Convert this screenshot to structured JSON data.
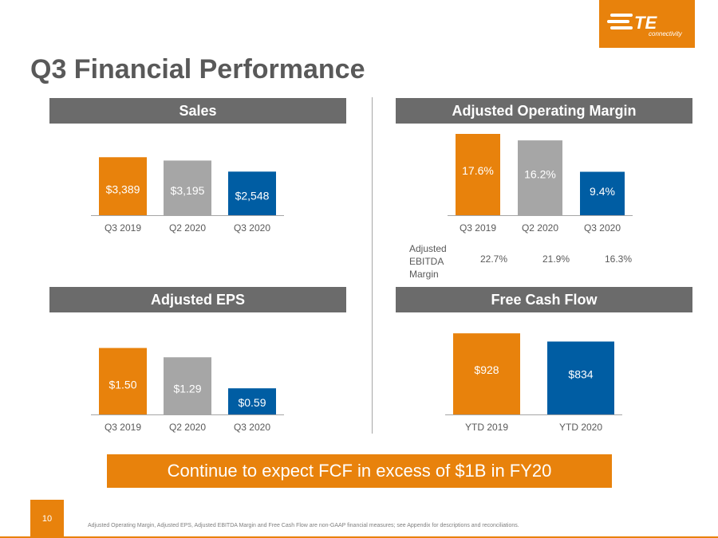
{
  "logo": {
    "brand": "TE",
    "tagline": "connectivity"
  },
  "title": "Q3 Financial Performance",
  "colors": {
    "orange": "#e8820c",
    "gray": "#a6a6a6",
    "blue": "#005da3",
    "header": "#6b6b6b"
  },
  "panels": {
    "sales": {
      "header": "Sales"
    },
    "opmargin": {
      "header": "Adjusted Operating Margin",
      "ebitda": {
        "label": "Adjusted EBITDA Margin",
        "values": [
          "22.7%",
          "21.9%",
          "16.3%"
        ]
      }
    },
    "eps": {
      "header": "Adjusted EPS"
    },
    "fcf": {
      "header": "Free Cash Flow"
    }
  },
  "chart_data": [
    {
      "id": "sales",
      "type": "bar",
      "categories": [
        "Q3 2019",
        "Q2 2020",
        "Q3 2020"
      ],
      "values": [
        3389,
        3195,
        2548
      ],
      "labels": [
        "$3,389",
        "$3,195",
        "$2,548"
      ],
      "colors": [
        "#e8820c",
        "#a6a6a6",
        "#005da3"
      ],
      "ylim": [
        0,
        4100
      ]
    },
    {
      "id": "opmargin",
      "type": "bar",
      "categories": [
        "Q3 2019",
        "Q2 2020",
        "Q3 2020"
      ],
      "values": [
        17.6,
        16.2,
        9.4
      ],
      "labels": [
        "17.6%",
        "16.2%",
        "9.4%"
      ],
      "colors": [
        "#e8820c",
        "#a6a6a6",
        "#005da3"
      ],
      "ylim": [
        0,
        17.6
      ]
    },
    {
      "id": "eps",
      "type": "bar",
      "categories": [
        "Q3 2019",
        "Q2 2020",
        "Q3 2020"
      ],
      "values": [
        1.5,
        1.29,
        0.59
      ],
      "labels": [
        "$1.50",
        "$1.29",
        "$0.59"
      ],
      "colors": [
        "#e8820c",
        "#a6a6a6",
        "#005da3"
      ],
      "ylim": [
        0,
        1.96
      ]
    },
    {
      "id": "fcf",
      "type": "bar",
      "categories": [
        "YTD 2019",
        "YTD 2020"
      ],
      "values": [
        928,
        834
      ],
      "labels": [
        "$928",
        "$834"
      ],
      "colors": [
        "#e8820c",
        "#005da3"
      ],
      "ylim": [
        0,
        1030
      ]
    }
  ],
  "callout": "Continue to expect FCF in excess of $1B in FY20",
  "page_number": "10",
  "footnote": "Adjusted Operating Margin, Adjusted EPS, Adjusted EBITDA Margin and Free Cash Flow are non-GAAP financial measures; see Appendix for descriptions and reconciliations."
}
